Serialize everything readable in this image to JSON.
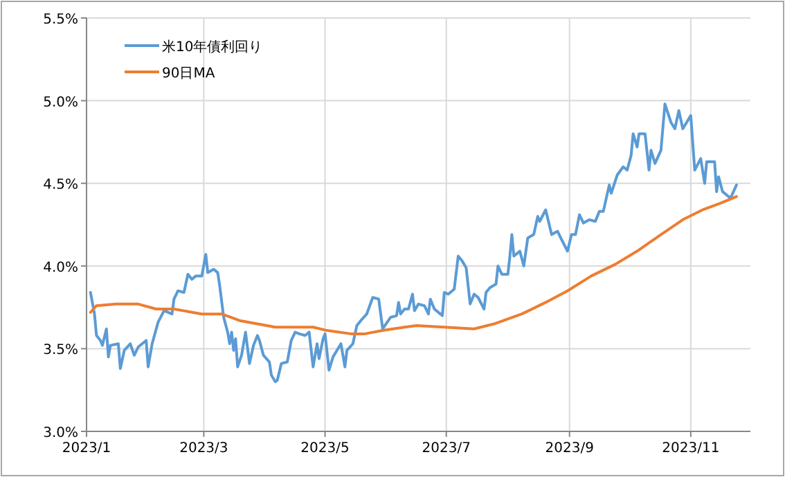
{
  "chart_data": {
    "type": "line",
    "legend": "top left",
    "grid": true,
    "marker": "none",
    "line_style": "solid",
    "xlim": [
      "2023-01-01",
      "2023-12-01"
    ],
    "xticks": [
      {
        "value": "2023-01-01",
        "label": "2023/1"
      },
      {
        "value": "2023-03-01",
        "label": "2023/3"
      },
      {
        "value": "2023-05-01",
        "label": "2023/5"
      },
      {
        "value": "2023-07-01",
        "label": "2023/7"
      },
      {
        "value": "2023-09-01",
        "label": "2023/9"
      },
      {
        "value": "2023-11-01",
        "label": "2023/11"
      }
    ],
    "ylim": [
      3.0,
      5.5
    ],
    "yticks": [
      {
        "value": 3.0,
        "label": "3.0%"
      },
      {
        "value": 3.5,
        "label": "3.5%"
      },
      {
        "value": 4.0,
        "label": "4.0%"
      },
      {
        "value": 4.5,
        "label": "4.5%"
      },
      {
        "value": 5.0,
        "label": "5.0%"
      },
      {
        "value": 5.5,
        "label": "5.5%"
      }
    ],
    "series": [
      {
        "name": "米10年債利回り",
        "color": "#5b9bd5",
        "x": [
          "2023-01-03",
          "2023-01-05",
          "2023-01-06",
          "2023-01-08",
          "2023-01-09",
          "2023-01-11",
          "2023-01-12",
          "2023-01-13",
          "2023-01-17",
          "2023-01-18",
          "2023-01-20",
          "2023-01-23",
          "2023-01-25",
          "2023-01-27",
          "2023-01-31",
          "2023-02-01",
          "2023-02-03",
          "2023-02-06",
          "2023-02-09",
          "2023-02-13",
          "2023-02-14",
          "2023-02-16",
          "2023-02-19",
          "2023-02-21",
          "2023-02-23",
          "2023-02-25",
          "2023-02-28",
          "2023-03-02",
          "2023-03-03",
          "2023-03-06",
          "2023-03-08",
          "2023-03-09",
          "2023-03-11",
          "2023-03-13",
          "2023-03-14",
          "2023-03-15",
          "2023-03-16",
          "2023-03-17",
          "2023-03-18",
          "2023-03-20",
          "2023-03-22",
          "2023-03-24",
          "2023-03-26",
          "2023-03-28",
          "2023-03-29",
          "2023-03-31",
          "2023-04-03",
          "2023-04-04",
          "2023-04-06",
          "2023-04-07",
          "2023-04-09",
          "2023-04-12",
          "2023-04-14",
          "2023-04-16",
          "2023-04-18",
          "2023-04-21",
          "2023-04-23",
          "2023-04-25",
          "2023-04-27",
          "2023-04-28",
          "2023-04-30",
          "2023-05-01",
          "2023-05-03",
          "2023-05-05",
          "2023-05-09",
          "2023-05-11",
          "2023-05-12",
          "2023-05-15",
          "2023-05-17",
          "2023-05-19",
          "2023-05-22",
          "2023-05-25",
          "2023-05-28",
          "2023-05-30",
          "2023-06-03",
          "2023-06-06",
          "2023-06-07",
          "2023-06-08",
          "2023-06-10",
          "2023-06-12",
          "2023-06-14",
          "2023-06-15",
          "2023-06-17",
          "2023-06-20",
          "2023-06-22",
          "2023-06-23",
          "2023-06-25",
          "2023-06-28",
          "2023-06-29",
          "2023-06-30",
          "2023-07-02",
          "2023-07-05",
          "2023-07-07",
          "2023-07-09",
          "2023-07-11",
          "2023-07-13",
          "2023-07-15",
          "2023-07-17",
          "2023-07-20",
          "2023-07-21",
          "2023-07-23",
          "2023-07-26",
          "2023-07-27",
          "2023-07-29",
          "2023-08-01",
          "2023-08-02",
          "2023-08-03",
          "2023-08-04",
          "2023-08-07",
          "2023-08-09",
          "2023-08-11",
          "2023-08-14",
          "2023-08-16",
          "2023-08-17",
          "2023-08-20",
          "2023-08-23",
          "2023-08-26",
          "2023-08-28",
          "2023-08-31",
          "2023-09-02",
          "2023-09-04",
          "2023-09-06",
          "2023-09-08",
          "2023-09-11",
          "2023-09-14",
          "2023-09-16",
          "2023-09-18",
          "2023-09-21",
          "2023-09-22",
          "2023-09-25",
          "2023-09-28",
          "2023-09-30",
          "2023-10-02",
          "2023-10-03",
          "2023-10-05",
          "2023-10-06",
          "2023-10-09",
          "2023-10-11",
          "2023-10-12",
          "2023-10-14",
          "2023-10-17",
          "2023-10-19",
          "2023-10-22",
          "2023-10-24",
          "2023-10-26",
          "2023-10-28",
          "2023-10-30",
          "2023-11-01",
          "2023-11-03",
          "2023-11-06",
          "2023-11-08",
          "2023-11-09",
          "2023-11-13",
          "2023-11-14",
          "2023-11-15",
          "2023-11-17",
          "2023-11-21",
          "2023-11-24"
        ],
        "values": [
          3.84,
          3.71,
          3.58,
          3.55,
          3.52,
          3.62,
          3.45,
          3.52,
          3.53,
          3.38,
          3.49,
          3.53,
          3.46,
          3.51,
          3.55,
          3.39,
          3.53,
          3.66,
          3.73,
          3.71,
          3.8,
          3.85,
          3.84,
          3.95,
          3.92,
          3.94,
          3.94,
          4.07,
          3.96,
          3.98,
          3.96,
          3.88,
          3.69,
          3.6,
          3.53,
          3.6,
          3.49,
          3.56,
          3.39,
          3.46,
          3.6,
          3.41,
          3.52,
          3.58,
          3.55,
          3.46,
          3.42,
          3.34,
          3.3,
          3.31,
          3.41,
          3.42,
          3.55,
          3.6,
          3.59,
          3.58,
          3.6,
          3.39,
          3.53,
          3.44,
          3.56,
          3.59,
          3.37,
          3.45,
          3.53,
          3.39,
          3.49,
          3.53,
          3.64,
          3.67,
          3.71,
          3.81,
          3.8,
          3.62,
          3.69,
          3.7,
          3.78,
          3.71,
          3.74,
          3.74,
          3.83,
          3.73,
          3.77,
          3.76,
          3.71,
          3.8,
          3.74,
          3.71,
          3.7,
          3.84,
          3.83,
          3.86,
          4.06,
          4.03,
          3.99,
          3.77,
          3.83,
          3.81,
          3.74,
          3.84,
          3.87,
          3.89,
          4.0,
          3.95,
          3.95,
          4.06,
          4.19,
          4.06,
          4.09,
          4.0,
          4.17,
          4.19,
          4.3,
          4.27,
          4.34,
          4.19,
          4.21,
          4.16,
          4.09,
          4.19,
          4.19,
          4.31,
          4.26,
          4.28,
          4.27,
          4.33,
          4.33,
          4.49,
          4.44,
          4.55,
          4.6,
          4.58,
          4.67,
          4.8,
          4.72,
          4.8,
          4.8,
          4.58,
          4.7,
          4.62,
          4.7,
          4.98,
          4.87,
          4.83,
          4.94,
          4.83,
          4.87,
          4.91,
          4.58,
          4.65,
          4.5,
          4.63,
          4.63,
          4.45,
          4.54,
          4.45,
          4.41,
          4.49
        ]
      },
      {
        "name": "90日MA",
        "color": "#ed7d31",
        "x": [
          "2023-01-03",
          "2023-01-06",
          "2023-01-16",
          "2023-01-27",
          "2023-02-05",
          "2023-02-14",
          "2023-02-28",
          "2023-03-10",
          "2023-03-19",
          "2023-03-28",
          "2023-04-06",
          "2023-04-25",
          "2023-05-02",
          "2023-05-14",
          "2023-05-21",
          "2023-05-30",
          "2023-06-10",
          "2023-06-16",
          "2023-06-30",
          "2023-07-15",
          "2023-07-25",
          "2023-08-08",
          "2023-08-20",
          "2023-08-31",
          "2023-09-12",
          "2023-09-24",
          "2023-10-05",
          "2023-10-17",
          "2023-10-28",
          "2023-11-07",
          "2023-11-16",
          "2023-11-24"
        ],
        "values": [
          3.72,
          3.76,
          3.77,
          3.77,
          3.74,
          3.74,
          3.71,
          3.71,
          3.67,
          3.65,
          3.63,
          3.63,
          3.61,
          3.59,
          3.59,
          3.61,
          3.63,
          3.64,
          3.63,
          3.62,
          3.65,
          3.71,
          3.78,
          3.85,
          3.94,
          4.01,
          4.09,
          4.19,
          4.28,
          4.34,
          4.38,
          4.42
        ]
      }
    ]
  }
}
